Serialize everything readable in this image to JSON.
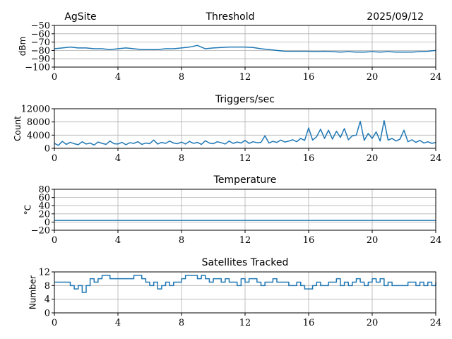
{
  "header": {
    "site": "AgSite",
    "title": "Threshold",
    "date": "2025/09/12"
  },
  "colors": {
    "series": "#1f77b4",
    "grid": "#b0b0b0"
  },
  "chart_data": [
    {
      "type": "line",
      "title": "Threshold",
      "xlabel": "",
      "ylabel": "dBm",
      "xlim": [
        0,
        24
      ],
      "ylim": [
        -100,
        -50
      ],
      "xticks": [
        0,
        4,
        8,
        12,
        16,
        20,
        24
      ],
      "yticks": [
        -100,
        -90,
        -80,
        -70,
        -60,
        -50
      ],
      "ytick_labels": [
        "−100",
        "−90",
        "−80",
        "−70",
        "−60",
        "−50"
      ],
      "grid": true,
      "step": 0.5,
      "values": [
        -78,
        -77,
        -76,
        -77,
        -77,
        -78,
        -78,
        -79,
        -78,
        -77,
        -78,
        -79,
        -79,
        -79,
        -78,
        -78,
        -77,
        -76,
        -74,
        -78,
        -77,
        -76.5,
        -76,
        -76,
        -76,
        -76.5,
        -78,
        -79,
        -80,
        -81,
        -81,
        -81,
        -81,
        -81.5,
        -81,
        -81.5,
        -82,
        -81.5,
        -82,
        -82,
        -81.5,
        -82,
        -81.5,
        -82,
        -82,
        -82,
        -81.5,
        -81,
        -80
      ]
    },
    {
      "type": "line",
      "title": "Triggers/sec",
      "xlabel": "",
      "ylabel": "Count",
      "xlim": [
        0,
        24
      ],
      "ylim": [
        0,
        12000
      ],
      "xticks": [
        0,
        4,
        8,
        12,
        16,
        20,
        24
      ],
      "yticks": [
        0,
        4000,
        8000,
        12000
      ],
      "ytick_labels": [
        "0",
        "4000",
        "8000",
        "12000"
      ],
      "grid": true,
      "step": 0.25,
      "values": [
        1500,
        900,
        2100,
        1200,
        1800,
        1400,
        1100,
        2000,
        1300,
        1600,
        1000,
        1900,
        1500,
        1200,
        2200,
        1400,
        1300,
        1800,
        1100,
        1700,
        1500,
        2000,
        1200,
        1600,
        1400,
        2500,
        1300,
        1800,
        1500,
        2200,
        1600,
        1400,
        1900,
        1300,
        2100,
        1500,
        1800,
        1200,
        2300,
        1600,
        1400,
        2000,
        1700,
        1300,
        2200,
        1500,
        1900,
        1600,
        2400,
        1500,
        2000,
        1700,
        1800,
        3800,
        1600,
        2100,
        1800,
        2500,
        1900,
        2200,
        2600,
        2000,
        3000,
        2400,
        6200,
        2500,
        3500,
        5800,
        3000,
        5500,
        2800,
        5200,
        3300,
        6000,
        2600,
        3800,
        4000,
        8200,
        2400,
        4500,
        3000,
        5000,
        2200,
        8400,
        2500,
        3000,
        2200,
        2800,
        5500,
        2000,
        2600,
        1800,
        2400,
        1600,
        2000,
        1500,
        1800
      ]
    },
    {
      "type": "line",
      "title": "Temperature",
      "xlabel": "",
      "ylabel": "°C",
      "xlim": [
        0,
        24
      ],
      "ylim": [
        -20,
        80
      ],
      "xticks": [
        0,
        4,
        8,
        12,
        16,
        20,
        24
      ],
      "yticks": [
        -20,
        0,
        20,
        40,
        60,
        80
      ],
      "ytick_labels": [
        "−20",
        "0",
        "20",
        "40",
        "60",
        "80"
      ],
      "grid": true,
      "step": 24,
      "values": [
        4,
        4
      ]
    },
    {
      "type": "line",
      "title": "Satellites Tracked",
      "xlabel": "",
      "ylabel": "Number",
      "xlim": [
        0,
        24
      ],
      "ylim": [
        0,
        12
      ],
      "xticks": [
        0,
        4,
        8,
        12,
        16,
        20,
        24
      ],
      "yticks": [
        0,
        4,
        8,
        12
      ],
      "ytick_labels": [
        "0",
        "4",
        "8",
        "12"
      ],
      "grid": true,
      "step": 0.25,
      "drawstyle": "steps",
      "values": [
        9,
        9,
        9,
        9,
        8,
        7,
        8,
        6,
        8,
        10,
        9,
        10,
        11,
        11,
        10,
        10,
        10,
        10,
        10,
        10,
        11,
        11,
        10,
        9,
        8,
        9,
        7,
        8,
        9,
        8,
        9,
        9,
        10,
        11,
        11,
        11,
        10,
        11,
        10,
        9,
        10,
        10,
        9,
        10,
        9,
        9,
        8,
        10,
        9,
        10,
        10,
        9,
        8,
        9,
        9,
        10,
        9,
        9,
        9,
        8,
        8,
        9,
        8,
        7,
        7,
        8,
        9,
        8,
        8,
        9,
        9,
        10,
        8,
        9,
        8,
        9,
        10,
        9,
        8,
        9,
        10,
        9,
        10,
        8,
        9,
        8,
        8,
        8,
        8,
        9,
        9,
        8,
        9,
        8,
        9,
        8,
        9
      ]
    }
  ]
}
